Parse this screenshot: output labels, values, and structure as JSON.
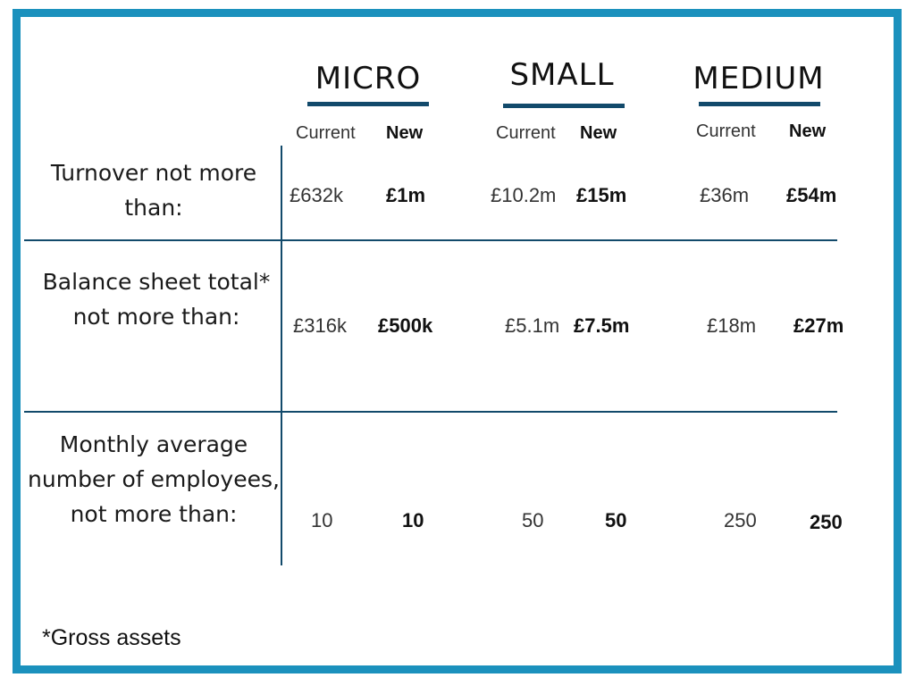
{
  "columns": [
    {
      "name": "MICRO",
      "current_label": "Current",
      "new_label": "New"
    },
    {
      "name": "SMALL",
      "current_label": "Current",
      "new_label": "New"
    },
    {
      "name": "MEDIUM",
      "current_label": "Current",
      "new_label": "New"
    }
  ],
  "rows": [
    {
      "label": "Turnover not more than:",
      "values": [
        {
          "current": "£632k",
          "new": "£1m"
        },
        {
          "current": "£10.2m",
          "new": "£15m"
        },
        {
          "current": "£36m",
          "new": "£54m"
        }
      ]
    },
    {
      "label": "Balance sheet total* not more than:",
      "values": [
        {
          "current": "£316k",
          "new": "£500k"
        },
        {
          "current": "£5.1m",
          "new": "£7.5m"
        },
        {
          "current": "£18m",
          "new": "£27m"
        }
      ]
    },
    {
      "label": "Monthly average number of employees, not more than:",
      "values": [
        {
          "current": "10",
          "new": "10"
        },
        {
          "current": "50",
          "new": "50"
        },
        {
          "current": "250",
          "new": "250"
        }
      ]
    }
  ],
  "footnote": "*Gross assets",
  "colors": {
    "border": "#1b91bd",
    "lines": "#124a6b"
  }
}
